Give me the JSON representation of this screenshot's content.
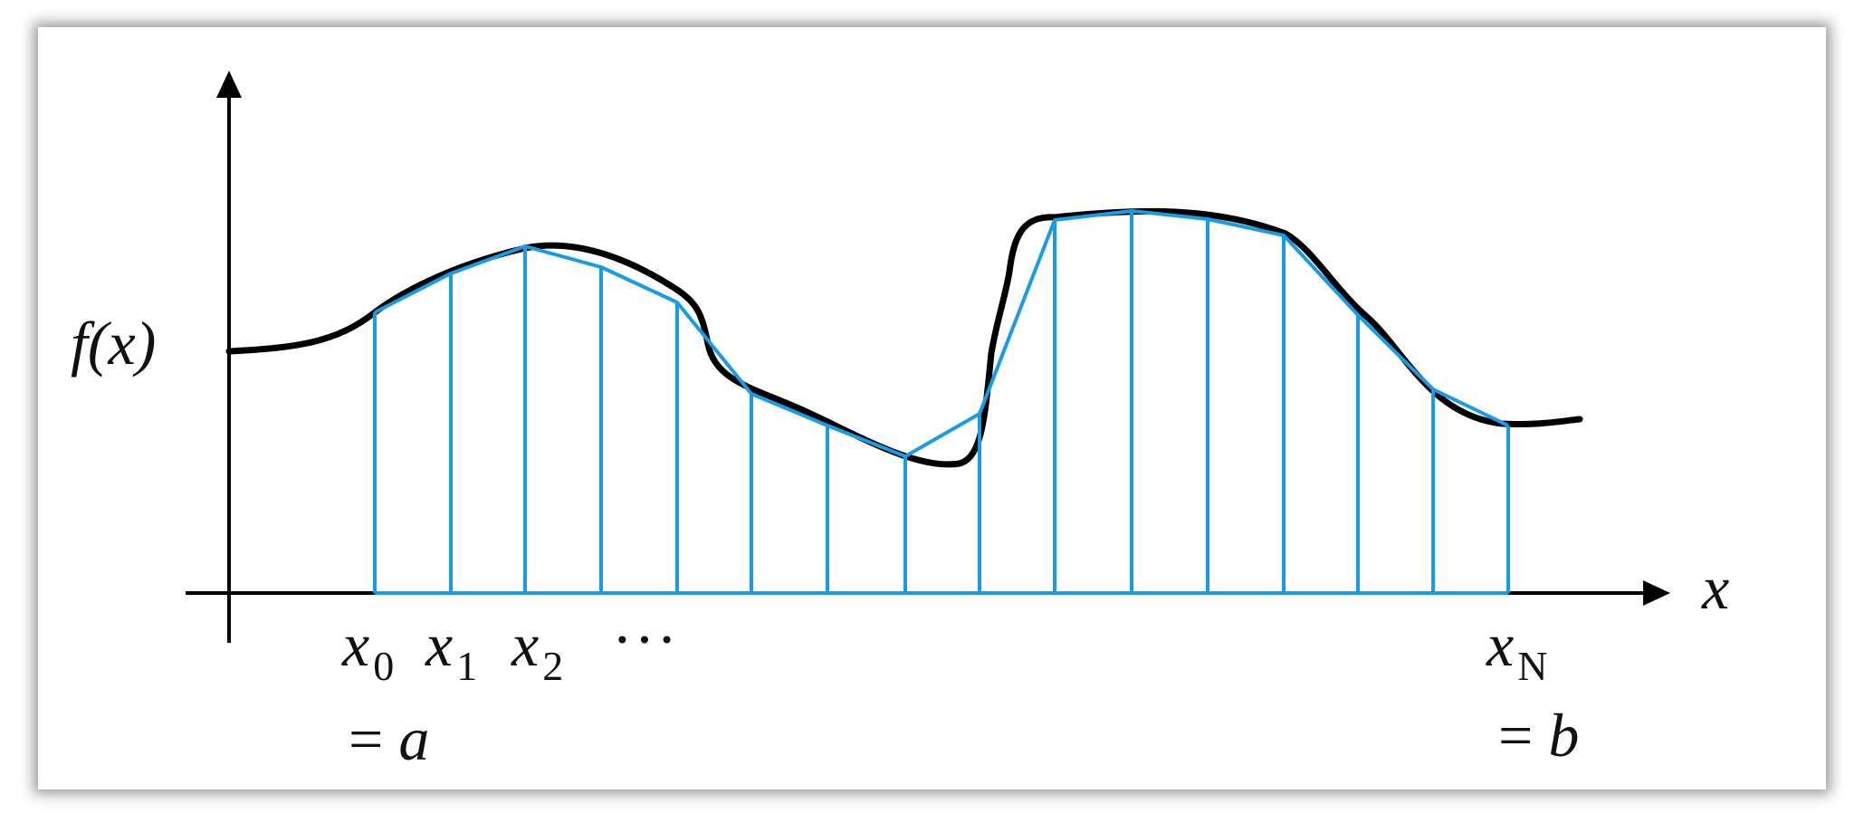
{
  "labels": {
    "y_axis": "f(x)",
    "x_axis": "x",
    "x0_var": "x",
    "x0_sub": "0",
    "x1_var": "x",
    "x1_sub": "1",
    "x2_var": "x",
    "x2_sub": "2",
    "ellipsis": "···",
    "xN_var": "x",
    "xN_sub": "N",
    "a_eq": "= ",
    "a_var": "a",
    "b_eq": "= ",
    "b_var": "b"
  },
  "colors": {
    "curve": "#000000",
    "trapezoids": "#1a9be6",
    "axes": "#000000"
  },
  "subintervals": 15
}
